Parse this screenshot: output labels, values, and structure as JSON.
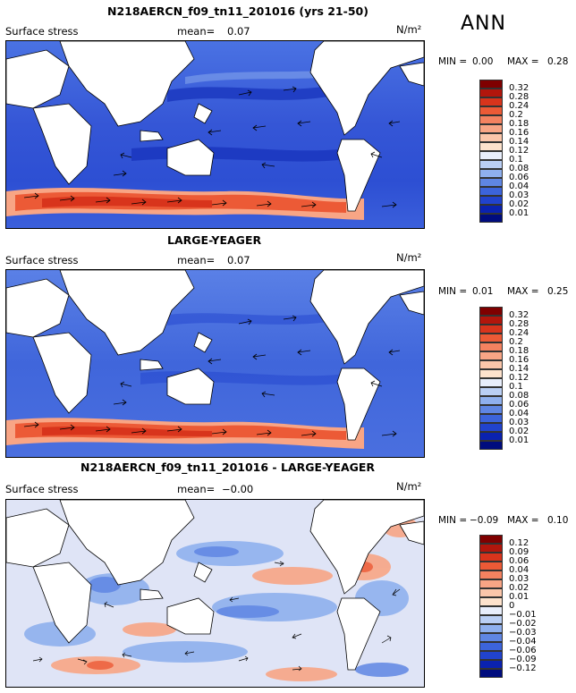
{
  "season": "ANN",
  "colors": {
    "ocean_base": "#3f63dc",
    "ocean_base_diff": "#dfe4f6",
    "land": "#ffffff",
    "coast": "#000000"
  },
  "panels": [
    {
      "title": "N218AERCN_f09_tn11_201016 (yrs 21-50)",
      "variable": "Surface stress",
      "mean_label": "mean=",
      "mean_value": "0.07",
      "units": "N/m²",
      "min_label": "MIN =",
      "min_value": "0.00",
      "max_label": "MAX =",
      "max_value": "0.28",
      "colorbar": {
        "labels": [
          "0.32",
          "0.28",
          "0.24",
          "0.2",
          "0.18",
          "0.16",
          "0.14",
          "0.12",
          "0.1",
          "0.08",
          "0.06",
          "0.04",
          "0.03",
          "0.02",
          "0.01"
        ],
        "colors": [
          "#7f0000",
          "#b2160c",
          "#d8341c",
          "#ec5a36",
          "#f48260",
          "#f8a585",
          "#fbc6aa",
          "#fde2cc",
          "#e8eefb",
          "#bacff4",
          "#8fb0ee",
          "#5f86e3",
          "#3c64db",
          "#2143cd",
          "#0a22b0",
          "#000c7e"
        ]
      }
    },
    {
      "title": "LARGE-YEAGER",
      "variable": "Surface stress",
      "mean_label": "mean=",
      "mean_value": "0.07",
      "units": "N/m²",
      "min_label": "MIN =",
      "min_value": "0.01",
      "max_label": "MAX =",
      "max_value": "0.25",
      "colorbar": {
        "labels": [
          "0.32",
          "0.28",
          "0.24",
          "0.2",
          "0.18",
          "0.16",
          "0.14",
          "0.12",
          "0.1",
          "0.08",
          "0.06",
          "0.04",
          "0.03",
          "0.02",
          "0.01"
        ],
        "colors": [
          "#7f0000",
          "#b2160c",
          "#d8341c",
          "#ec5a36",
          "#f48260",
          "#f8a585",
          "#fbc6aa",
          "#fde2cc",
          "#e8eefb",
          "#bacff4",
          "#8fb0ee",
          "#5f86e3",
          "#3c64db",
          "#2143cd",
          "#0a22b0",
          "#000c7e"
        ]
      }
    },
    {
      "title": "N218AERCN_f09_tn11_201016 - LARGE-YEAGER",
      "variable": "Surface stress",
      "mean_label": "mean=",
      "mean_value": "−0.00",
      "units": "N/m²",
      "min_label": "MIN =",
      "min_value": "−0.09",
      "max_label": "MAX =",
      "max_value": "0.10",
      "colorbar": {
        "labels": [
          "0.12",
          "0.09",
          "0.06",
          "0.04",
          "0.03",
          "0.02",
          "0.01",
          "0",
          "−0.01",
          "−0.02",
          "−0.03",
          "−0.04",
          "−0.06",
          "−0.09",
          "−0.12"
        ],
        "colors": [
          "#7f0000",
          "#b2160c",
          "#d8341c",
          "#ec5a36",
          "#f48260",
          "#f8a585",
          "#fbc6aa",
          "#fde2cc",
          "#e8eefb",
          "#bacff4",
          "#8fb0ee",
          "#5f86e3",
          "#3c64db",
          "#2143cd",
          "#0a22b0",
          "#000c7e"
        ]
      }
    }
  ]
}
